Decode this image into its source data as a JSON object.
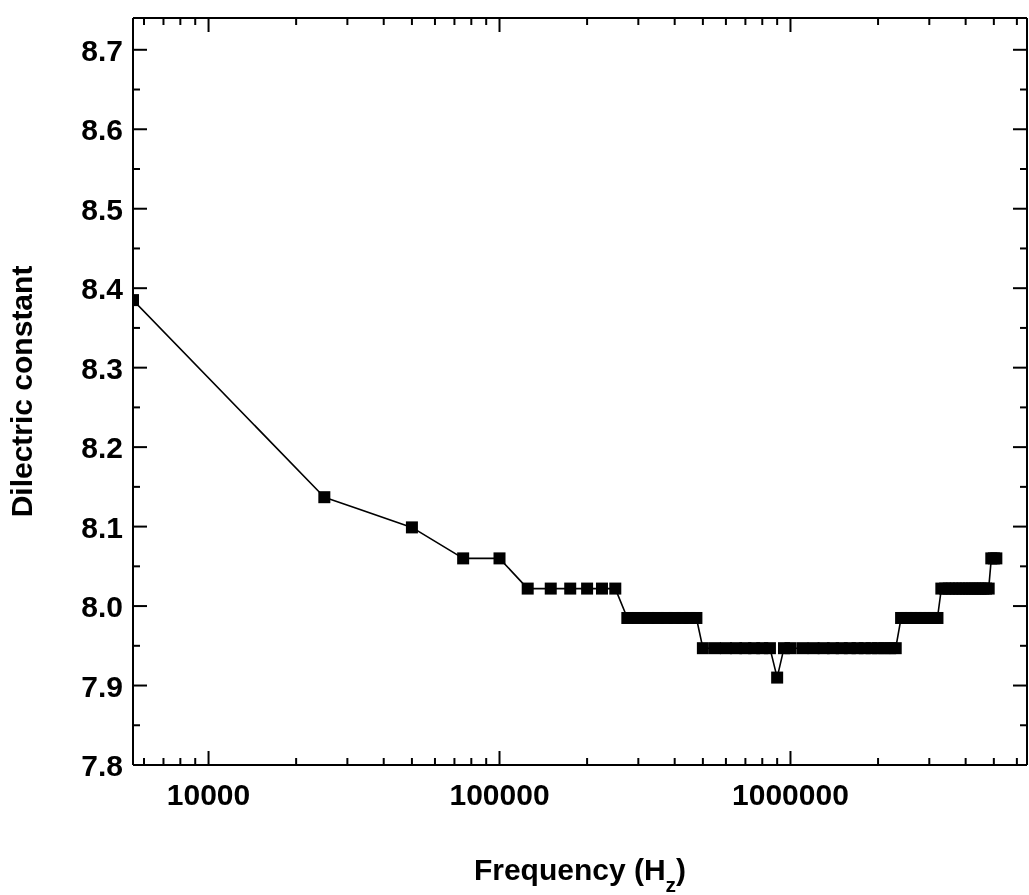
{
  "chart_data": {
    "type": "line",
    "xlabel": "Frequency (H$_{z}$)",
    "ylabel": "Dilectric constant",
    "log": "x",
    "xlim": [
      5500,
      6500000
    ],
    "ylim": [
      7.8,
      8.74
    ],
    "xticks": [
      {
        "value": 6000,
        "label": null
      },
      {
        "value": 7000,
        "label": null
      },
      {
        "value": 8000,
        "label": null
      },
      {
        "value": 9000,
        "label": null
      },
      10000,
      {
        "value": 20000,
        "label": null
      },
      {
        "value": 30000,
        "label": null
      },
      {
        "value": 40000,
        "label": null
      },
      {
        "value": 50000,
        "label": null
      },
      {
        "value": 60000,
        "label": null
      },
      {
        "value": 70000,
        "label": null
      },
      {
        "value": 80000,
        "label": null
      },
      {
        "value": 90000,
        "label": null
      },
      100000,
      {
        "value": 200000,
        "label": null
      },
      {
        "value": 300000,
        "label": null
      },
      {
        "value": 400000,
        "label": null
      },
      {
        "value": 500000,
        "label": null
      },
      {
        "value": 600000,
        "label": null
      },
      {
        "value": 700000,
        "label": null
      },
      {
        "value": 800000,
        "label": null
      },
      {
        "value": 900000,
        "label": null
      },
      1000000,
      {
        "value": 2000000,
        "label": null
      },
      {
        "value": 3000000,
        "label": null
      },
      {
        "value": 4000000,
        "label": null
      },
      {
        "value": 5000000,
        "label": null
      },
      {
        "value": 6000000,
        "label": null
      }
    ],
    "yticks": [
      7.8,
      {
        "value": 7.85,
        "label": null
      },
      7.9,
      {
        "value": 7.95,
        "label": null
      },
      {
        "value": 8,
        "label": "8.0"
      },
      {
        "value": 8.05,
        "label": null
      },
      8.1,
      {
        "value": 8.15,
        "label": null
      },
      8.2,
      {
        "value": 8.25,
        "label": null
      },
      8.3,
      {
        "value": 8.35,
        "label": null
      },
      8.4,
      {
        "value": 8.45,
        "label": null
      },
      8.5,
      {
        "value": 8.55,
        "label": null
      },
      8.6,
      {
        "value": 8.65,
        "label": null
      },
      8.7
    ],
    "series": [
      {
        "color": "#000000",
        "marker": "square",
        "x": [
          5500,
          25000,
          50000,
          75000,
          100000,
          125000,
          150000,
          175000,
          200000,
          225000,
          250000,
          275000,
          300000,
          325000,
          350000,
          375000,
          400000,
          425000,
          450000,
          475000,
          500000,
          550000,
          600000,
          650000,
          700000,
          750000,
          800000,
          850000,
          900000,
          950000,
          1000000,
          1100000,
          1200000,
          1300000,
          1400000,
          1500000,
          1600000,
          1700000,
          1800000,
          1900000,
          2000000,
          2100000,
          2200000,
          2300000,
          2400000,
          2500000,
          2600000,
          2700000,
          2800000,
          2900000,
          3000000,
          3100000,
          3200000,
          3300000,
          3400000,
          3500000,
          3600000,
          3700000,
          3800000,
          3900000,
          4000000,
          4100000,
          4200000,
          4300000,
          4400000,
          4500000,
          4600000,
          4700000,
          4800000,
          4900000,
          5000000,
          5100000
        ],
        "values": [
          8.385,
          8.137,
          8.099,
          8.06,
          8.06,
          8.022,
          8.022,
          8.022,
          8.022,
          8.022,
          8.022,
          7.985,
          7.985,
          7.985,
          7.985,
          7.985,
          7.985,
          7.985,
          7.985,
          7.985,
          7.947,
          7.947,
          7.947,
          7.947,
          7.947,
          7.947,
          7.947,
          7.947,
          7.91,
          7.947,
          7.947,
          7.947,
          7.947,
          7.947,
          7.947,
          7.947,
          7.947,
          7.947,
          7.947,
          7.947,
          7.947,
          7.947,
          7.947,
          7.947,
          7.985,
          7.985,
          7.985,
          7.985,
          7.985,
          7.985,
          7.985,
          7.985,
          7.985,
          8.022,
          8.022,
          8.022,
          8.022,
          8.022,
          8.022,
          8.022,
          8.022,
          8.022,
          8.022,
          8.022,
          8.022,
          8.022,
          8.022,
          8.022,
          8.022,
          8.06,
          8.06,
          8.06
        ]
      }
    ]
  }
}
